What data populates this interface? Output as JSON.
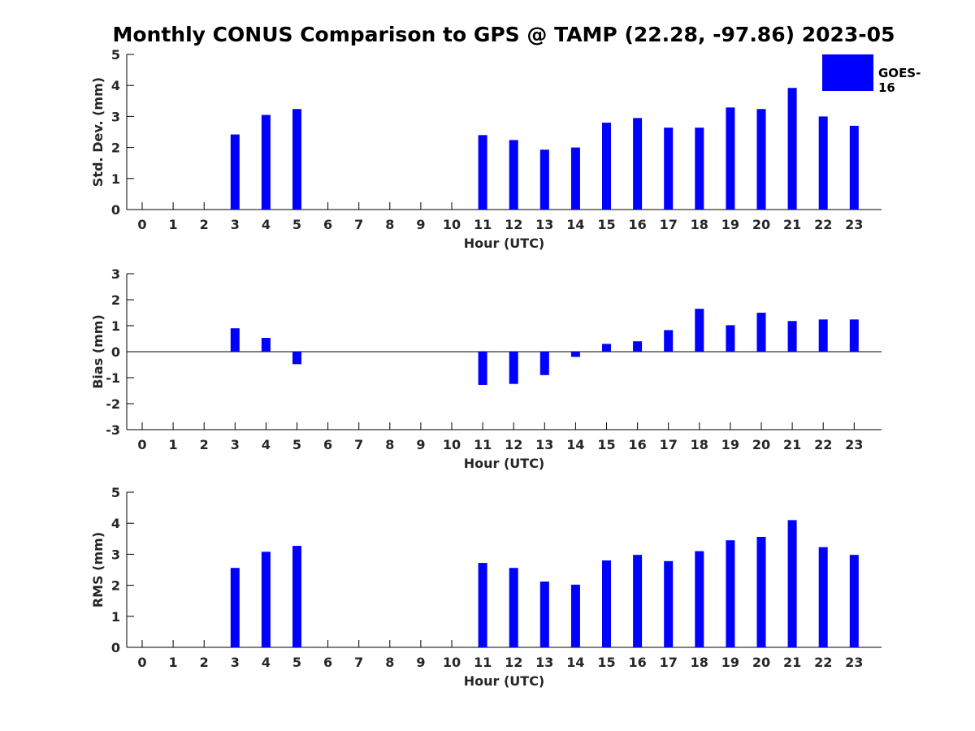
{
  "chart_data": [
    {
      "type": "bar",
      "title": "Monthly CONUS Comparison to GPS @ TAMP (22.28, -97.86) 2023-05",
      "xlabel": "Hour (UTC)",
      "ylabel": "Std. Dev. (mm)",
      "ylim": [
        0,
        5
      ],
      "yticks": [
        0,
        1,
        2,
        3,
        4,
        5
      ],
      "categories": [
        "0",
        "1",
        "2",
        "3",
        "4",
        "5",
        "6",
        "7",
        "8",
        "9",
        "10",
        "11",
        "12",
        "13",
        "14",
        "15",
        "16",
        "17",
        "18",
        "19",
        "20",
        "21",
        "22",
        "23"
      ],
      "series": [
        {
          "name": "GOES-16",
          "values": [
            null,
            null,
            null,
            2.42,
            3.05,
            3.24,
            null,
            null,
            null,
            null,
            null,
            2.4,
            2.24,
            1.93,
            2.0,
            2.8,
            2.95,
            2.64,
            2.64,
            3.29,
            3.24,
            3.92,
            3.0,
            2.7
          ]
        }
      ]
    },
    {
      "type": "bar",
      "xlabel": "Hour (UTC)",
      "ylabel": "Bias (mm)",
      "ylim": [
        -3,
        3
      ],
      "yticks": [
        -3,
        -2,
        -1,
        0,
        1,
        2,
        3
      ],
      "categories": [
        "0",
        "1",
        "2",
        "3",
        "4",
        "5",
        "6",
        "7",
        "8",
        "9",
        "10",
        "11",
        "12",
        "13",
        "14",
        "15",
        "16",
        "17",
        "18",
        "19",
        "20",
        "21",
        "22",
        "23"
      ],
      "series": [
        {
          "name": "GOES-16",
          "values": [
            null,
            null,
            null,
            0.9,
            0.53,
            -0.48,
            null,
            null,
            null,
            null,
            null,
            -1.28,
            -1.24,
            -0.9,
            -0.2,
            0.3,
            0.4,
            0.83,
            1.65,
            1.02,
            1.5,
            1.18,
            1.24,
            1.24
          ]
        }
      ]
    },
    {
      "type": "bar",
      "xlabel": "Hour (UTC)",
      "ylabel": "RMS (mm)",
      "ylim": [
        0,
        5
      ],
      "yticks": [
        0,
        1,
        2,
        3,
        4,
        5
      ],
      "categories": [
        "0",
        "1",
        "2",
        "3",
        "4",
        "5",
        "6",
        "7",
        "8",
        "9",
        "10",
        "11",
        "12",
        "13",
        "14",
        "15",
        "16",
        "17",
        "18",
        "19",
        "20",
        "21",
        "22",
        "23"
      ],
      "series": [
        {
          "name": "GOES-16",
          "values": [
            null,
            null,
            null,
            2.56,
            3.08,
            3.27,
            null,
            null,
            null,
            null,
            null,
            2.72,
            2.56,
            2.12,
            2.02,
            2.8,
            2.98,
            2.78,
            3.1,
            3.45,
            3.56,
            4.1,
            3.23,
            2.98
          ]
        }
      ]
    }
  ],
  "legend": {
    "label": "GOES-16",
    "color": "#0000ff",
    "placement": "top-right"
  },
  "colors": {
    "bar": "#0000ff",
    "axis": "#000000",
    "text": "#262626"
  }
}
